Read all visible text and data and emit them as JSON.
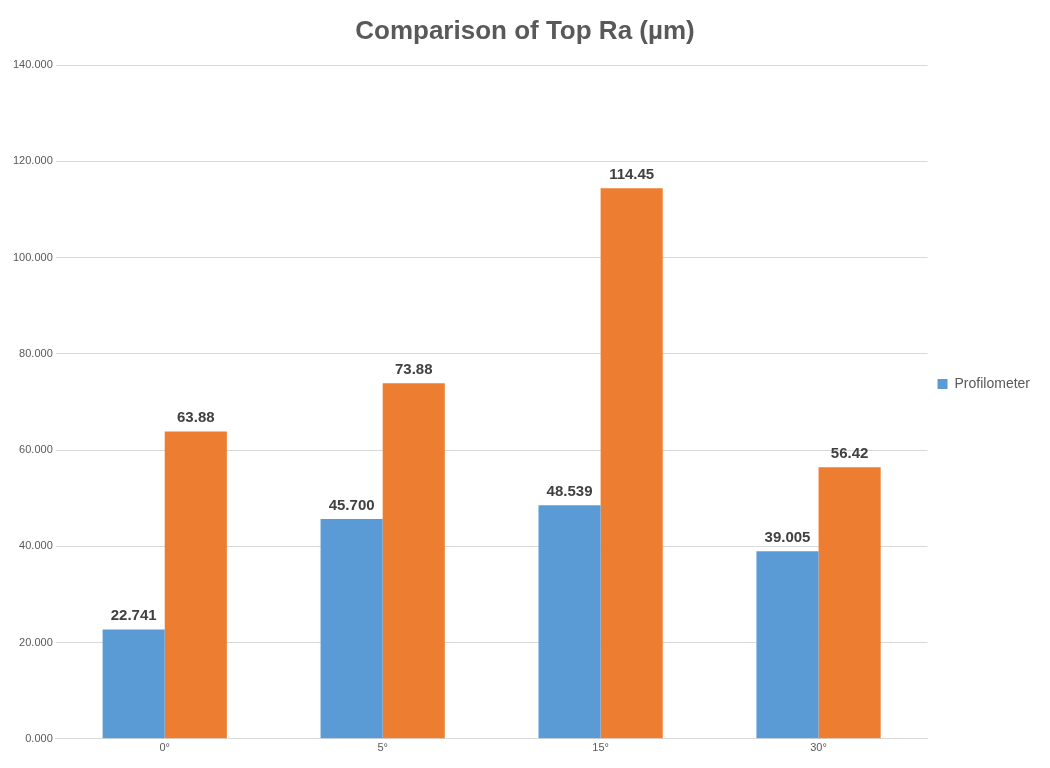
{
  "chart_data": {
    "type": "bar",
    "title": "Comparison of Top Ra (µm)",
    "categories": [
      "0°",
      "5°",
      "15°",
      "30°"
    ],
    "series": [
      {
        "name": "Profilometer",
        "color": "#5b9bd5",
        "values": [
          22.741,
          45.7,
          48.539,
          39.005
        ],
        "value_labels": [
          "22.741",
          "45.700",
          "48.539",
          "39.005"
        ]
      },
      {
        "color": "#ed7d31",
        "values": [
          63.88,
          73.88,
          114.45,
          56.42
        ],
        "value_labels": [
          "63.88",
          "73.88",
          "114.45",
          "56.42"
        ]
      }
    ],
    "ylim": [
      0,
      140
    ],
    "yticks": [
      {
        "value": 0,
        "label": "0.000"
      },
      {
        "value": 20,
        "label": "20.000"
      },
      {
        "value": 40,
        "label": "40.000"
      },
      {
        "value": 60,
        "label": "60.000"
      },
      {
        "value": 80,
        "label": "80.000"
      },
      {
        "value": 100,
        "label": "100.000"
      },
      {
        "value": 120,
        "label": "120.000"
      },
      {
        "value": 140,
        "label": "140.000"
      }
    ],
    "grid": "y",
    "legend": "right"
  }
}
